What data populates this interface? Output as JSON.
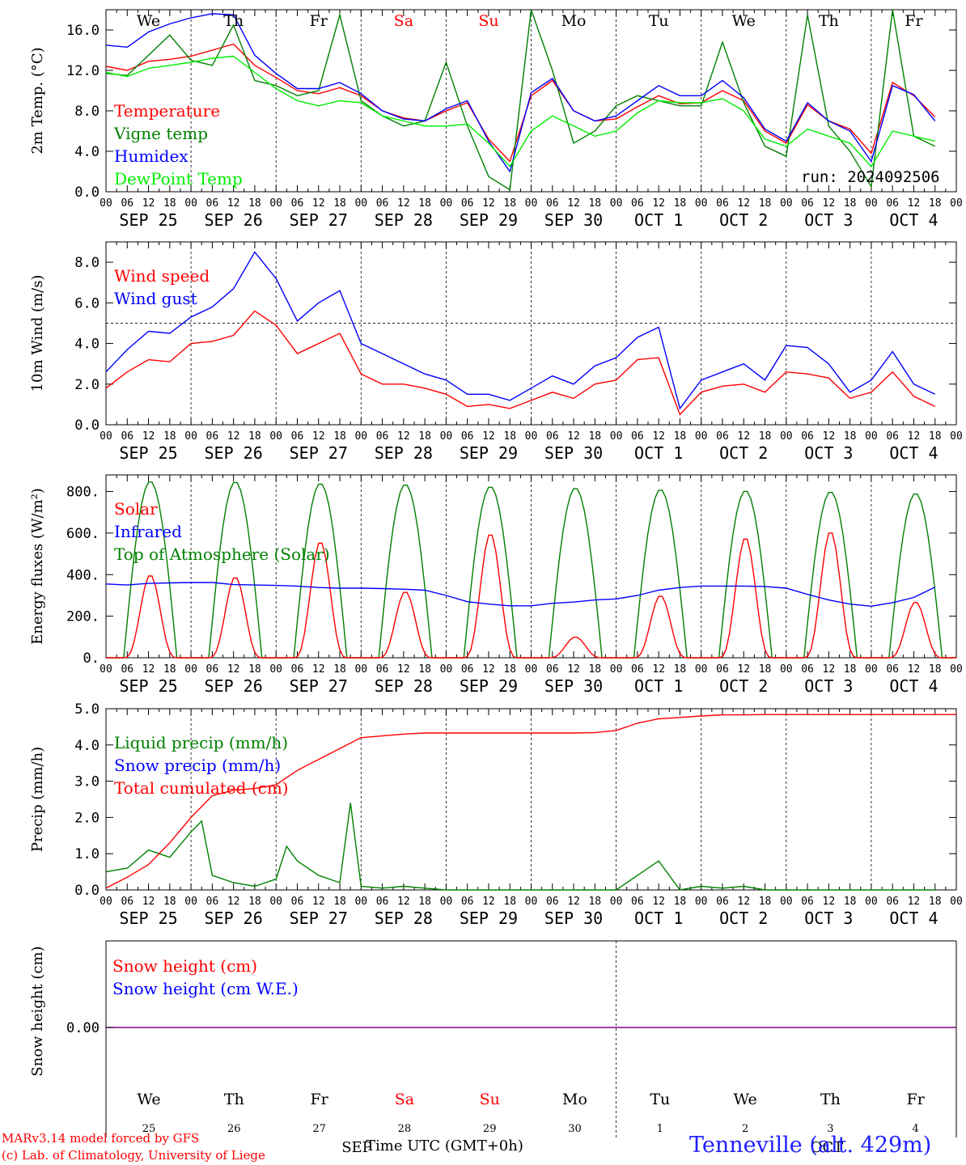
{
  "footer": {
    "credit_line1": "MARv3.14 model forced by GFS",
    "credit_line2": "(c) Lab. of Climatology, University of Liege",
    "station": "Tenneville (alt. 429m)",
    "x_axis_title": "Time UTC (GMT+0h)",
    "run": "run: 2024092506"
  },
  "colors": {
    "red": "#ff0000",
    "green": "#008000",
    "blue": "#0000ff",
    "lightgreen": "#00ee00",
    "purple": "#800080"
  },
  "chart_data": [
    {
      "type": "line",
      "ylabel": "2m Temp. (°C)",
      "ylim": [
        0,
        18
      ],
      "yticks": [
        "0.0",
        "4.0",
        "8.0",
        "12.0",
        "16.0"
      ],
      "yticks_values": [
        0,
        4,
        8,
        12,
        16
      ],
      "day_names": [
        "We",
        "Th",
        "Fr",
        "Sa",
        "Su",
        "Mo",
        "Tu",
        "We",
        "Th",
        "Fr"
      ],
      "day_name_colors": [
        "#000",
        "#000",
        "#000",
        "#ff0000",
        "#ff0000",
        "#000",
        "#000",
        "#000",
        "#000",
        "#000"
      ],
      "date_labels": [
        "SEP 25",
        "SEP 26",
        "SEP 27",
        "SEP 28",
        "SEP 29",
        "SEP 30",
        "OCT  1",
        "OCT  2",
        "OCT  3",
        "OCT  4"
      ],
      "hour_labels": [
        "00",
        "06",
        "12",
        "18"
      ],
      "x_unit": "hours since Sep 25 00 UTC",
      "series": [
        {
          "name": "Temperature",
          "color": "#ff0000",
          "x": [
            0,
            6,
            12,
            18,
            24,
            30,
            36,
            42,
            48,
            54,
            60,
            66,
            72,
            78,
            84,
            90,
            96,
            102,
            108,
            114,
            120,
            126,
            132,
            138,
            144,
            150,
            156,
            162,
            168,
            174,
            180,
            186,
            192,
            198,
            204,
            210,
            216,
            222,
            228,
            234
          ],
          "values": [
            12.4,
            12.0,
            12.9,
            13.1,
            13.4,
            14.0,
            14.6,
            12.5,
            11.3,
            10.0,
            9.7,
            10.3,
            9.5,
            8.0,
            7.3,
            7.0,
            8.0,
            8.8,
            5.2,
            3.0,
            9.5,
            11.0,
            8.0,
            7.0,
            7.2,
            8.4,
            9.5,
            8.7,
            8.8,
            10.0,
            9.0,
            6.0,
            4.8,
            8.6,
            7.0,
            6.2,
            3.8,
            10.8,
            9.5,
            7.4
          ]
        },
        {
          "name": "Vigne temp",
          "color": "#008000",
          "x": [
            0,
            6,
            12,
            18,
            24,
            30,
            36,
            42,
            48,
            54,
            60,
            66,
            72,
            78,
            84,
            90,
            96,
            102,
            108,
            114,
            120,
            126,
            132,
            138,
            144,
            150,
            156,
            162,
            168,
            174,
            180,
            186,
            192,
            198,
            204,
            210,
            216,
            222,
            228,
            234
          ],
          "values": [
            11.7,
            11.5,
            13.5,
            15.5,
            13.0,
            12.5,
            16.5,
            11.0,
            10.5,
            9.5,
            10.0,
            17.5,
            9.0,
            7.5,
            6.5,
            7.0,
            12.8,
            6.5,
            1.5,
            0.2,
            18.0,
            12.0,
            4.8,
            6.0,
            8.5,
            9.5,
            9.0,
            8.5,
            8.5,
            14.8,
            8.8,
            4.5,
            3.5,
            17.5,
            6.5,
            4.0,
            0.5,
            18.0,
            5.5,
            4.5
          ]
        },
        {
          "name": "Humidex",
          "color": "#0000ff",
          "x": [
            0,
            6,
            12,
            18,
            24,
            30,
            36,
            42,
            48,
            54,
            60,
            66,
            72,
            78,
            84,
            90,
            96,
            102,
            108,
            114,
            120,
            126,
            132,
            138,
            144,
            150,
            156,
            162,
            168,
            174,
            180,
            186,
            192,
            198,
            204,
            210,
            216,
            222,
            228,
            234
          ],
          "values": [
            14.5,
            14.3,
            15.8,
            16.6,
            17.2,
            17.6,
            17.5,
            13.5,
            11.7,
            10.2,
            10.2,
            10.8,
            9.7,
            8.0,
            7.2,
            7.0,
            8.2,
            9.0,
            5.0,
            2.0,
            9.8,
            11.2,
            8.0,
            7.0,
            7.5,
            9.0,
            10.5,
            9.5,
            9.5,
            11.0,
            9.3,
            6.2,
            5.0,
            8.8,
            7.0,
            6.0,
            3.0,
            10.5,
            9.6,
            7.0
          ]
        },
        {
          "name": "DewPoint Temp",
          "color": "#00ee00",
          "x": [
            0,
            6,
            12,
            18,
            24,
            30,
            36,
            42,
            48,
            54,
            60,
            66,
            72,
            78,
            84,
            90,
            96,
            102,
            108,
            114,
            120,
            126,
            132,
            138,
            144,
            150,
            156,
            162,
            168,
            174,
            180,
            186,
            192,
            198,
            204,
            210,
            216,
            222,
            228,
            234
          ],
          "values": [
            11.8,
            11.4,
            12.2,
            12.5,
            12.8,
            13.2,
            13.4,
            11.8,
            10.2,
            9.0,
            8.5,
            9.0,
            8.8,
            7.5,
            7.0,
            6.5,
            6.5,
            6.7,
            4.8,
            2.5,
            6.0,
            7.5,
            6.5,
            5.5,
            6.0,
            7.8,
            9.0,
            8.8,
            8.8,
            9.2,
            8.0,
            5.2,
            4.5,
            6.2,
            5.5,
            4.8,
            2.5,
            6.0,
            5.5,
            5.0
          ]
        }
      ]
    },
    {
      "type": "line",
      "ylabel": "10m Wind (m/s)",
      "ylim": [
        0,
        9
      ],
      "yticks": [
        "0.0",
        "2.0",
        "4.0",
        "6.0",
        "8.0"
      ],
      "yticks_values": [
        0,
        2,
        4,
        6,
        8
      ],
      "reference_line": 5.0,
      "date_labels": [
        "SEP 25",
        "SEP 26",
        "SEP 27",
        "SEP 28",
        "SEP 29",
        "SEP 30",
        "OCT  1",
        "OCT  2",
        "OCT  3",
        "OCT  4"
      ],
      "hour_labels": [
        "00",
        "06",
        "12",
        "18"
      ],
      "series": [
        {
          "name": "Wind speed",
          "color": "#ff0000",
          "x": [
            0,
            6,
            12,
            18,
            24,
            30,
            36,
            42,
            48,
            54,
            60,
            66,
            72,
            78,
            84,
            90,
            96,
            102,
            108,
            114,
            120,
            126,
            132,
            138,
            144,
            150,
            156,
            162,
            168,
            174,
            180,
            186,
            192,
            198,
            204,
            210,
            216,
            222,
            228,
            234
          ],
          "values": [
            1.8,
            2.6,
            3.2,
            3.1,
            4.0,
            4.1,
            4.4,
            5.6,
            4.9,
            3.5,
            4.0,
            4.5,
            2.5,
            2.0,
            2.0,
            1.8,
            1.5,
            0.9,
            1.0,
            0.8,
            1.2,
            1.6,
            1.3,
            2.0,
            2.2,
            3.2,
            3.3,
            0.5,
            1.6,
            1.9,
            2.0,
            1.6,
            2.6,
            2.5,
            2.3,
            1.3,
            1.6,
            2.6,
            1.4,
            0.9
          ]
        },
        {
          "name": "Wind gust",
          "color": "#0000ff",
          "x": [
            0,
            6,
            12,
            18,
            24,
            30,
            36,
            42,
            48,
            54,
            60,
            66,
            72,
            78,
            84,
            90,
            96,
            102,
            108,
            114,
            120,
            126,
            132,
            138,
            144,
            150,
            156,
            162,
            168,
            174,
            180,
            186,
            192,
            198,
            204,
            210,
            216,
            222,
            228,
            234
          ],
          "values": [
            2.6,
            3.7,
            4.6,
            4.5,
            5.3,
            5.8,
            6.7,
            8.5,
            7.2,
            5.1,
            6.0,
            6.6,
            4.0,
            3.5,
            3.0,
            2.5,
            2.2,
            1.5,
            1.5,
            1.2,
            1.8,
            2.4,
            2.0,
            2.9,
            3.3,
            4.3,
            4.8,
            0.8,
            2.2,
            2.6,
            3.0,
            2.2,
            3.9,
            3.8,
            3.0,
            1.6,
            2.2,
            3.6,
            2.0,
            1.5
          ]
        }
      ]
    },
    {
      "type": "line",
      "ylabel": "Energy fluxes (W/m²)",
      "ylim": [
        0,
        880
      ],
      "yticks": [
        "0.",
        "200.",
        "400.",
        "600.",
        "800."
      ],
      "yticks_values": [
        0,
        200,
        400,
        600,
        800
      ],
      "date_labels": [
        "SEP 25",
        "SEP 26",
        "SEP 27",
        "SEP 28",
        "SEP 29",
        "SEP 30",
        "OCT  1",
        "OCT  2",
        "OCT  3",
        "OCT  4"
      ],
      "hour_labels": [
        "00",
        "06",
        "12",
        "18"
      ],
      "toa_peaks": [
        850,
        848,
        840,
        835,
        825,
        818,
        810,
        805,
        800,
        792
      ],
      "solar_peaks": [
        400,
        390,
        560,
        320,
        600,
        100,
        300,
        580,
        610,
        270
      ],
      "series": [
        {
          "name": "Solar",
          "color": "#ff0000"
        },
        {
          "name": "Infrared",
          "color": "#0000ff",
          "x": [
            0,
            6,
            12,
            18,
            24,
            30,
            36,
            42,
            48,
            54,
            60,
            66,
            72,
            78,
            84,
            90,
            96,
            102,
            108,
            114,
            120,
            126,
            132,
            138,
            144,
            150,
            156,
            162,
            168,
            174,
            180,
            186,
            192,
            198,
            204,
            210,
            216,
            222,
            228,
            234
          ],
          "values": [
            355,
            350,
            358,
            360,
            362,
            362,
            352,
            350,
            348,
            345,
            338,
            335,
            335,
            333,
            330,
            325,
            300,
            270,
            258,
            250,
            250,
            262,
            268,
            278,
            283,
            300,
            325,
            338,
            345,
            345,
            345,
            343,
            335,
            305,
            278,
            258,
            248,
            265,
            290,
            340
          ]
        },
        {
          "name": "Top of Atmosphere (Solar)",
          "color": "#008000"
        }
      ]
    },
    {
      "type": "line",
      "ylabel": "Precip (mm/h)",
      "ylim": [
        0,
        5
      ],
      "yticks": [
        "0.0",
        "1.0",
        "2.0",
        "3.0",
        "4.0",
        "5.0"
      ],
      "yticks_values": [
        0,
        1,
        2,
        3,
        4,
        5
      ],
      "date_labels": [
        "SEP 25",
        "SEP 26",
        "SEP 27",
        "SEP 28",
        "SEP 29",
        "SEP 30",
        "OCT  1",
        "OCT  2",
        "OCT  3",
        "OCT  4"
      ],
      "hour_labels": [
        "00",
        "06",
        "12",
        "18"
      ],
      "series": [
        {
          "name": "Liquid precip (mm/h)",
          "color": "#008000",
          "x": [
            0,
            6,
            12,
            18,
            24,
            27,
            30,
            36,
            42,
            48,
            51,
            54,
            60,
            66,
            69,
            72,
            78,
            84,
            90,
            96,
            102,
            108,
            114,
            120,
            126,
            132,
            138,
            144,
            150,
            156,
            162,
            168,
            174,
            180,
            186,
            192,
            198,
            204,
            210,
            216,
            222,
            228,
            234
          ],
          "values": [
            0.5,
            0.6,
            1.1,
            0.9,
            1.6,
            1.9,
            0.4,
            0.2,
            0.1,
            0.3,
            1.2,
            0.8,
            0.4,
            0.2,
            2.4,
            0.1,
            0.05,
            0.1,
            0.05,
            0.0,
            0.0,
            0.0,
            0.0,
            0.0,
            0.0,
            0.0,
            0.0,
            0.0,
            0.4,
            0.8,
            0.0,
            0.1,
            0.05,
            0.1,
            0.0,
            0.0,
            0.0,
            0.0,
            0.0,
            0.0,
            0.0,
            0.0,
            0.0
          ]
        },
        {
          "name": "Snow precip (mm/h)",
          "color": "#0000ff"
        },
        {
          "name": "Total cumulated (cm)",
          "color": "#ff0000",
          "x": [
            0,
            6,
            12,
            18,
            24,
            30,
            36,
            42,
            48,
            54,
            60,
            66,
            72,
            78,
            84,
            90,
            96,
            102,
            108,
            114,
            120,
            126,
            132,
            138,
            144,
            150,
            156,
            162,
            168,
            174,
            180,
            186,
            192,
            198,
            204,
            210,
            216,
            222,
            228,
            234,
            240
          ],
          "values": [
            0.05,
            0.35,
            0.7,
            1.3,
            2.0,
            2.6,
            2.75,
            2.8,
            2.9,
            3.3,
            3.6,
            3.9,
            4.2,
            4.25,
            4.3,
            4.33,
            4.33,
            4.33,
            4.33,
            4.33,
            4.33,
            4.33,
            4.33,
            4.34,
            4.4,
            4.6,
            4.72,
            4.76,
            4.8,
            4.83,
            4.83,
            4.84,
            4.84,
            4.84,
            4.84,
            4.84,
            4.84,
            4.84,
            4.84,
            4.84,
            4.84
          ]
        }
      ]
    },
    {
      "type": "line",
      "ylabel": "Snow height (cm)",
      "yticks": [
        "0.00"
      ],
      "yticks_values": [
        0
      ],
      "day_names": [
        "We",
        "Th",
        "Fr",
        "Sa",
        "Su",
        "Mo",
        "Tu",
        "We",
        "Th",
        "Fr"
      ],
      "day_name_colors": [
        "#000",
        "#000",
        "#000",
        "#ff0000",
        "#ff0000",
        "#000",
        "#000",
        "#000",
        "#000",
        "#000"
      ],
      "day_numbers": [
        "25",
        "26",
        "27",
        "28",
        "29",
        "30",
        "1",
        "2",
        "3",
        "4"
      ],
      "month_labels": [
        "SEP",
        "OCT"
      ],
      "series": [
        {
          "name": "Snow height (cm)",
          "color": "#ff0000",
          "values": [
            0,
            0
          ]
        },
        {
          "name": "Snow height (cm W.E.)",
          "color": "#0000ff",
          "values": [
            0,
            0
          ]
        }
      ]
    }
  ]
}
